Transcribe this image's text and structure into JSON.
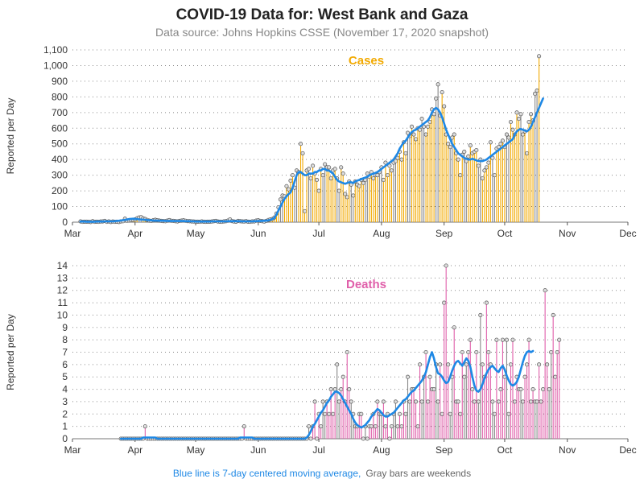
{
  "title": "COVID-19 Data for: West Bank and Gaza",
  "subtitle": "Data source: Johns Hopkins CSSE (November 17, 2020 snapshot)",
  "footnote": {
    "blue_text": "Blue line is 7-day centered moving average,",
    "gray_text": "Gray bars are weekends"
  },
  "colors": {
    "cases": "#f2a900",
    "deaths": "#e05faa",
    "moving_average": "#1e88e5",
    "weekend_bar": "#888888",
    "grid": "#888888"
  },
  "chart_data": [
    {
      "type": "bar",
      "panel_label": "Cases",
      "ylabel": "Reported per Day",
      "ylim": [
        0,
        1100
      ],
      "yticks": [
        "0",
        "100",
        "200",
        "300",
        "400",
        "500",
        "600",
        "700",
        "800",
        "900",
        "1,000",
        "1,100"
      ],
      "xlim": [
        "2020-03-01",
        "2020-12-01"
      ],
      "xticks": [
        "Mar",
        "Apr",
        "May",
        "Jun",
        "Jul",
        "Aug",
        "Sep",
        "Oct",
        "Nov",
        "Dec"
      ],
      "grid": "horizontal dotted",
      "series": [
        {
          "marks": "daily reported bars",
          "x_start": "2020-03-05",
          "values": [
            5,
            2,
            3,
            3,
            2,
            1,
            6,
            2,
            3,
            2,
            4,
            5,
            8,
            2,
            5,
            1,
            4,
            2,
            3,
            1,
            5,
            6,
            22,
            9,
            11,
            13,
            15,
            18,
            25,
            30,
            32,
            24,
            20,
            14,
            10,
            8,
            12,
            15,
            12,
            10,
            8,
            7,
            6,
            10,
            13,
            9,
            8,
            6,
            5,
            8,
            10,
            12,
            9,
            7,
            6,
            5,
            4,
            3,
            3,
            2,
            5,
            3,
            2,
            3,
            3,
            4,
            6,
            8,
            4,
            3,
            2,
            5,
            6,
            10,
            18,
            7,
            4,
            3,
            8,
            6,
            5,
            4,
            6,
            3,
            2,
            5,
            5,
            10,
            12,
            8,
            6,
            4,
            8,
            14,
            18,
            20,
            30,
            55,
            95,
            145,
            170,
            165,
            230,
            210,
            265,
            300,
            220,
            330,
            320,
            500,
            440,
            70,
            330,
            340,
            280,
            360,
            310,
            270,
            200,
            340,
            300,
            370,
            350,
            350,
            280,
            330,
            340,
            280,
            200,
            350,
            310,
            180,
            160,
            260,
            240,
            170,
            260,
            240,
            230,
            270,
            250,
            270,
            310,
            290,
            320,
            280,
            300,
            300,
            320,
            350,
            270,
            380,
            300,
            360,
            330,
            380,
            390,
            410,
            450,
            400,
            510,
            440,
            570,
            550,
            610,
            560,
            530,
            600,
            590,
            660,
            610,
            560,
            610,
            640,
            720,
            690,
            790,
            880,
            680,
            830,
            740,
            560,
            500,
            480,
            540,
            560,
            440,
            400,
            300,
            430,
            450,
            390,
            420,
            490,
            440,
            450,
            460,
            360,
            400,
            280,
            330,
            350,
            380,
            510,
            410,
            300,
            470,
            480,
            500,
            520,
            480,
            560,
            540,
            640,
            590,
            560,
            700,
            660,
            690,
            560,
            580,
            440,
            640,
            690,
            650,
            820,
            840,
            1060
          ]
        },
        {
          "marks": "7-day centered moving average line",
          "color": "#1e88e5",
          "x_start": "2020-03-05",
          "values": [
            4,
            4,
            4,
            3,
            3,
            3,
            3,
            3,
            4,
            4,
            4,
            4,
            5,
            5,
            5,
            5,
            5,
            6,
            8,
            9,
            11,
            13,
            15,
            17,
            20,
            21,
            22,
            21,
            20,
            18,
            17,
            16,
            15,
            14,
            13,
            12,
            11,
            10,
            10,
            9,
            9,
            9,
            8,
            8,
            8,
            7,
            7,
            7,
            7,
            7,
            7,
            7,
            6,
            6,
            6,
            5,
            5,
            4,
            4,
            4,
            4,
            4,
            4,
            4,
            4,
            5,
            5,
            5,
            5,
            5,
            5,
            5,
            5,
            6,
            6,
            6,
            6,
            6,
            6,
            6,
            5,
            5,
            5,
            5,
            5,
            5,
            6,
            6,
            7,
            7,
            8,
            9,
            10,
            12,
            15,
            20,
            28,
            48,
            75,
            100,
            125,
            150,
            165,
            180,
            190,
            220,
            260,
            300,
            320,
            320,
            310,
            300,
            300,
            310,
            310,
            310,
            320,
            320,
            330,
            330,
            340,
            340,
            330,
            330,
            320,
            310,
            290,
            270,
            260,
            255,
            250,
            245,
            250,
            255,
            255,
            250,
            260,
            265,
            270,
            275,
            280,
            285,
            290,
            300,
            305,
            310,
            315,
            320,
            330,
            340,
            350,
            360,
            370,
            380,
            390,
            400,
            420,
            440,
            470,
            490,
            510,
            520,
            540,
            560,
            575,
            585,
            590,
            600,
            610,
            620,
            630,
            640,
            650,
            670,
            700,
            720,
            730,
            720,
            700,
            670,
            630,
            590,
            560,
            530,
            500,
            480,
            460,
            440,
            430,
            420,
            410,
            405,
            400,
            400,
            405,
            400,
            395,
            390,
            390,
            390,
            395,
            400,
            410,
            420,
            430,
            440,
            450,
            460,
            470,
            480,
            490,
            500,
            510,
            520,
            530,
            560,
            580,
            590,
            595,
            590,
            585,
            580,
            590,
            610,
            640,
            670,
            700,
            730,
            760,
            790
          ]
        }
      ]
    },
    {
      "type": "bar",
      "panel_label": "Deaths",
      "ylabel": "Reported per Day",
      "ylim": [
        0,
        14
      ],
      "yticks": [
        "0",
        "1",
        "2",
        "3",
        "4",
        "5",
        "6",
        "7",
        "8",
        "9",
        "10",
        "11",
        "12",
        "13",
        "14"
      ],
      "xlim": [
        "2020-03-01",
        "2020-12-01"
      ],
      "xticks": [
        "Mar",
        "Apr",
        "May",
        "Jun",
        "Jul",
        "Aug",
        "Sep",
        "Oct",
        "Nov",
        "Dec"
      ],
      "grid": "horizontal dotted",
      "series": [
        {
          "marks": "daily reported bars",
          "x_start": "2020-03-25",
          "values": [
            0,
            0,
            0,
            0,
            0,
            0,
            0,
            0,
            0,
            0,
            0,
            0,
            1,
            0,
            0,
            0,
            0,
            0,
            0,
            0,
            0,
            0,
            0,
            0,
            0,
            0,
            0,
            0,
            0,
            0,
            0,
            0,
            0,
            0,
            0,
            0,
            0,
            0,
            0,
            0,
            0,
            0,
            0,
            0,
            0,
            0,
            0,
            0,
            0,
            0,
            0,
            0,
            0,
            0,
            0,
            0,
            0,
            0,
            0,
            0,
            0,
            1,
            0,
            0,
            0,
            0,
            0,
            0,
            0,
            0,
            0,
            0,
            0,
            0,
            0,
            0,
            0,
            0,
            0,
            0,
            0,
            0,
            0,
            0,
            0,
            0,
            0,
            0,
            0,
            0,
            0,
            0,
            0,
            1,
            0,
            1,
            3,
            0,
            2,
            1,
            3,
            2,
            3,
            2,
            4,
            2,
            4,
            6,
            3,
            4,
            5,
            3,
            7,
            4,
            3,
            2,
            1,
            1,
            2,
            2,
            0,
            1,
            0,
            1,
            1,
            2,
            1,
            3,
            2,
            2,
            3,
            1,
            2,
            0,
            1,
            2,
            3,
            1,
            2,
            1,
            3,
            2,
            5,
            3,
            4,
            4,
            3,
            1,
            6,
            3,
            5,
            7,
            3,
            5,
            4,
            4,
            6,
            3,
            6,
            2,
            11,
            14,
            6,
            2,
            5,
            9,
            3,
            3,
            2,
            7,
            5,
            6,
            7,
            8,
            4,
            3,
            7,
            3,
            10,
            6,
            5,
            11,
            7,
            6,
            3,
            2,
            8,
            3,
            4,
            8,
            5,
            8,
            2,
            6,
            8,
            3,
            5,
            4,
            4,
            3,
            5,
            6,
            8,
            3,
            4,
            3,
            3,
            6,
            3,
            4,
            12,
            6,
            4,
            7,
            10,
            5,
            7,
            8
          ]
        },
        {
          "marks": "7-day centered moving average line",
          "color": "#1e88e5",
          "x_start": "2020-03-25",
          "values": [
            0,
            0,
            0,
            0,
            0,
            0,
            0,
            0,
            0,
            0,
            0,
            0.1,
            0.1,
            0.1,
            0.1,
            0.1,
            0.1,
            0.1,
            0,
            0,
            0,
            0,
            0,
            0,
            0,
            0,
            0,
            0,
            0,
            0,
            0,
            0,
            0,
            0,
            0,
            0,
            0,
            0,
            0,
            0,
            0,
            0,
            0,
            0,
            0,
            0,
            0,
            0,
            0,
            0,
            0,
            0,
            0,
            0,
            0,
            0,
            0,
            0,
            0,
            0.1,
            0.1,
            0.1,
            0.1,
            0.1,
            0.1,
            0.1,
            0,
            0,
            0,
            0,
            0,
            0,
            0,
            0,
            0,
            0,
            0,
            0,
            0,
            0,
            0,
            0,
            0,
            0,
            0,
            0,
            0,
            0,
            0,
            0,
            0,
            0,
            0.1,
            0.3,
            0.6,
            1.0,
            1.2,
            1.5,
            1.8,
            2.1,
            2.3,
            2.6,
            2.9,
            3.1,
            3.4,
            3.6,
            3.8,
            3.8,
            3.7,
            3.5,
            3.2,
            2.9,
            2.6,
            2.3,
            2.0,
            1.6,
            1.3,
            1.1,
            1.0,
            0.9,
            1.0,
            1.1,
            1.3,
            1.5,
            1.8,
            2.0,
            2.2,
            2.4,
            2.3,
            2.1,
            1.9,
            1.8,
            1.8,
            1.9,
            2.0,
            2.1,
            2.3,
            2.5,
            2.7,
            2.9,
            3.1,
            3.2,
            3.4,
            3.6,
            3.8,
            3.9,
            4.1,
            4.3,
            4.5,
            4.7,
            5.0,
            5.4,
            6.0,
            6.6,
            7.0,
            6.5,
            5.8,
            5.3,
            5.2,
            5.0,
            4.7,
            4.5,
            4.6,
            5.0,
            5.5,
            5.9,
            6.2,
            6.3,
            6.1,
            5.9,
            6.2,
            6.5,
            6.3,
            5.8,
            5.0,
            4.3,
            3.9,
            3.8,
            4.0,
            4.4,
            4.9,
            5.3,
            5.6,
            5.8,
            5.9,
            5.7,
            5.5,
            5.4,
            5.7,
            5.9,
            5.6,
            5.1,
            4.7,
            4.4,
            4.3,
            4.4,
            4.6,
            5.0,
            5.6,
            6.2,
            6.7,
            7.0,
            7.1,
            7.0,
            7.1
          ]
        }
      ]
    }
  ]
}
